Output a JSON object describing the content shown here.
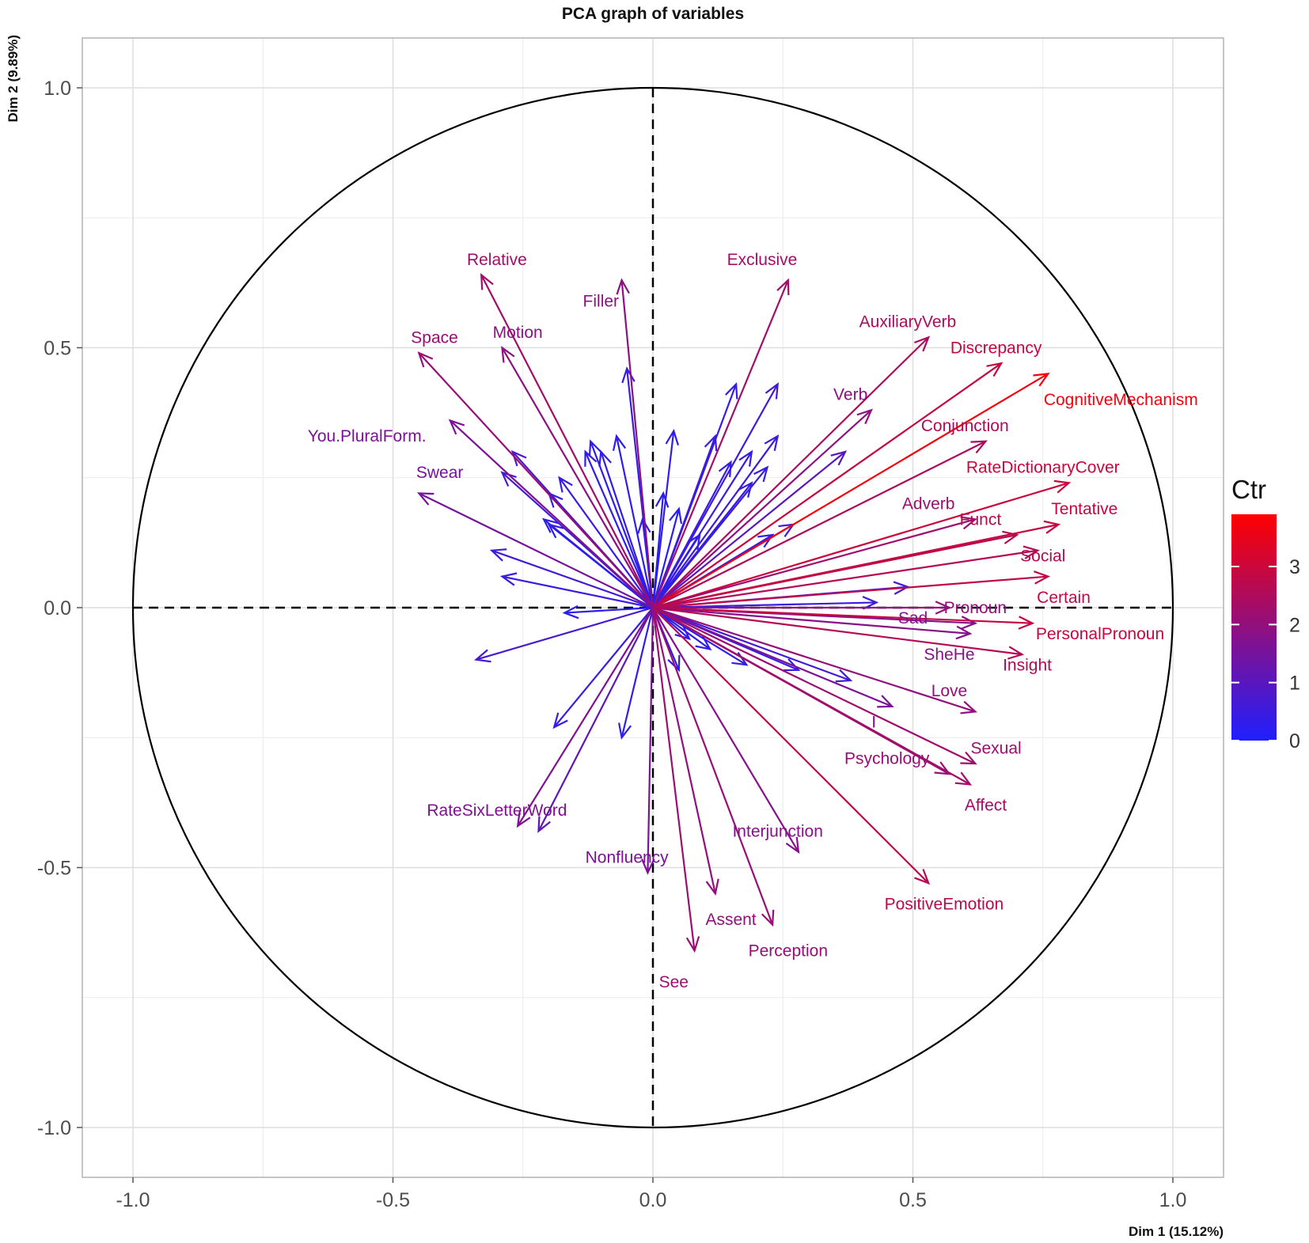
{
  "chart_data": {
    "type": "scatter",
    "subtype": "pca-correlation-circle",
    "title": "PCA graph of variables",
    "xlabel": "Dim 1 (15.12%)",
    "ylabel": "Dim 2 (9.89%)",
    "xlim": [
      -1.1,
      1.1
    ],
    "ylim": [
      -1.1,
      1.1
    ],
    "x_ticks": [
      -1.0,
      -0.5,
      0.0,
      0.5,
      1.0
    ],
    "y_ticks": [
      -1.0,
      -0.5,
      0.0,
      0.5,
      1.0
    ],
    "x_tick_labels": [
      "-1.0",
      "-0.5",
      "0.0",
      "0.5",
      "1.0"
    ],
    "y_tick_labels": [
      "-1.0",
      "-0.5",
      "0.0",
      "0.5",
      "1.0"
    ],
    "grid": true,
    "legend": {
      "title": "Ctr",
      "position": "right",
      "ticks": [
        0,
        1,
        2,
        3
      ],
      "tick_labels": [
        "0",
        "1",
        "2",
        "3"
      ],
      "min": 0,
      "max": 3.9,
      "colors": [
        "#1f1fff",
        "#ff0000"
      ]
    },
    "labeled_variables": [
      {
        "name": "Relative",
        "x": -0.33,
        "y": 0.64,
        "ctr": 2.3,
        "lx": -0.3,
        "ly": 0.67
      },
      {
        "name": "Filler",
        "x": -0.06,
        "y": 0.63,
        "ctr": 1.9,
        "lx": -0.1,
        "ly": 0.59
      },
      {
        "name": "Exclusive",
        "x": 0.26,
        "y": 0.63,
        "ctr": 2.3,
        "lx": 0.21,
        "ly": 0.67
      },
      {
        "name": "AuxiliaryVerb",
        "x": 0.53,
        "y": 0.52,
        "ctr": 2.5,
        "lx": 0.49,
        "ly": 0.55
      },
      {
        "name": "Discrepancy",
        "x": 0.67,
        "y": 0.47,
        "ctr": 2.9,
        "lx": 0.66,
        "ly": 0.5
      },
      {
        "name": "Motion",
        "x": -0.29,
        "y": 0.5,
        "ctr": 1.9,
        "lx": -0.26,
        "ly": 0.53
      },
      {
        "name": "Space",
        "x": -0.45,
        "y": 0.49,
        "ctr": 2.1,
        "lx": -0.42,
        "ly": 0.52
      },
      {
        "name": "CognitiveMechanism",
        "x": 0.76,
        "y": 0.45,
        "ctr": 3.7,
        "lx": 0.9,
        "ly": 0.4
      },
      {
        "name": "Verb",
        "x": 0.42,
        "y": 0.38,
        "ctr": 1.9,
        "lx": 0.38,
        "ly": 0.41
      },
      {
        "name": "You.PluralForm.",
        "x": -0.39,
        "y": 0.36,
        "ctr": 1.6,
        "lx": -0.55,
        "ly": 0.33
      },
      {
        "name": "Conjunction",
        "x": 0.64,
        "y": 0.32,
        "ctr": 2.5,
        "lx": 0.6,
        "ly": 0.35
      },
      {
        "name": "Swear",
        "x": -0.45,
        "y": 0.22,
        "ctr": 1.5,
        "lx": -0.41,
        "ly": 0.26
      },
      {
        "name": "RateDictionaryCover",
        "x": 0.8,
        "y": 0.24,
        "ctr": 3.0,
        "lx": 0.75,
        "ly": 0.27
      },
      {
        "name": "Adverb",
        "x": 0.62,
        "y": 0.17,
        "ctr": 2.2,
        "lx": 0.53,
        "ly": 0.2
      },
      {
        "name": "Funct",
        "x": 0.7,
        "y": 0.14,
        "ctr": 2.7,
        "lx": 0.63,
        "ly": 0.17
      },
      {
        "name": "Tentative",
        "x": 0.78,
        "y": 0.16,
        "ctr": 2.9,
        "lx": 0.83,
        "ly": 0.19
      },
      {
        "name": "Social",
        "x": 0.74,
        "y": 0.11,
        "ctr": 2.6,
        "lx": 0.75,
        "ly": 0.1
      },
      {
        "name": "Certain",
        "x": 0.76,
        "y": 0.06,
        "ctr": 2.8,
        "lx": 0.79,
        "ly": 0.02
      },
      {
        "name": "Pronoun",
        "x": 0.57,
        "y": 0.0,
        "ctr": 2.0,
        "lx": 0.62,
        "ly": 0.0
      },
      {
        "name": "Sad",
        "x": 0.62,
        "y": -0.03,
        "ctr": 1.8,
        "lx": 0.5,
        "ly": -0.02
      },
      {
        "name": "PersonalPronoun",
        "x": 0.73,
        "y": -0.03,
        "ctr": 2.9,
        "lx": 0.86,
        "ly": -0.05
      },
      {
        "name": "SheHe",
        "x": 0.61,
        "y": -0.05,
        "ctr": 1.8,
        "lx": 0.57,
        "ly": -0.09
      },
      {
        "name": "Insight",
        "x": 0.71,
        "y": -0.09,
        "ctr": 2.6,
        "lx": 0.72,
        "ly": -0.11
      },
      {
        "name": "Love",
        "x": 0.62,
        "y": -0.2,
        "ctr": 2.0,
        "lx": 0.57,
        "ly": -0.16
      },
      {
        "name": "I",
        "x": 0.46,
        "y": -0.19,
        "ctr": 1.6,
        "lx": 0.425,
        "ly": -0.22
      },
      {
        "name": "Sexual",
        "x": 0.62,
        "y": -0.3,
        "ctr": 2.2,
        "lx": 0.66,
        "ly": -0.27
      },
      {
        "name": "Psychology",
        "x": 0.57,
        "y": -0.32,
        "ctr": 2.1,
        "lx": 0.45,
        "ly": -0.29
      },
      {
        "name": "Affect",
        "x": 0.61,
        "y": -0.34,
        "ctr": 2.3,
        "lx": 0.64,
        "ly": -0.38
      },
      {
        "name": "RateSixLetterWord",
        "x": -0.26,
        "y": -0.42,
        "ctr": 1.7,
        "lx": -0.3,
        "ly": -0.39
      },
      {
        "name": "Interjunction",
        "x": 0.28,
        "y": -0.47,
        "ctr": 1.8,
        "lx": 0.24,
        "ly": -0.43
      },
      {
        "name": "Nonfluency",
        "x": -0.01,
        "y": -0.51,
        "ctr": 1.6,
        "lx": -0.05,
        "ly": -0.48
      },
      {
        "name": "PositiveEmotion",
        "x": 0.53,
        "y": -0.53,
        "ctr": 2.7,
        "lx": 0.56,
        "ly": -0.57
      },
      {
        "name": "Assent",
        "x": 0.12,
        "y": -0.55,
        "ctr": 2.0,
        "lx": 0.15,
        "ly": -0.6
      },
      {
        "name": "Perception",
        "x": 0.23,
        "y": -0.61,
        "ctr": 2.1,
        "lx": 0.26,
        "ly": -0.66
      },
      {
        "name": "See",
        "x": 0.08,
        "y": -0.66,
        "ctr": 2.2,
        "lx": 0.04,
        "ly": -0.72
      }
    ],
    "unlabeled_variables": [
      {
        "x": -0.05,
        "y": 0.46,
        "ctr": 0.4
      },
      {
        "x": 0.16,
        "y": 0.43,
        "ctr": 0.4
      },
      {
        "x": 0.24,
        "y": 0.43,
        "ctr": 0.6
      },
      {
        "x": -0.12,
        "y": 0.32,
        "ctr": 0.3
      },
      {
        "x": -0.07,
        "y": 0.33,
        "ctr": 0.3
      },
      {
        "x": 0.04,
        "y": 0.34,
        "ctr": 0.3
      },
      {
        "x": 0.12,
        "y": 0.33,
        "ctr": 0.5
      },
      {
        "x": 0.24,
        "y": 0.33,
        "ctr": 0.5
      },
      {
        "x": -0.13,
        "y": 0.3,
        "ctr": 0.3
      },
      {
        "x": -0.1,
        "y": 0.3,
        "ctr": 0.3
      },
      {
        "x": 0.19,
        "y": 0.3,
        "ctr": 0.4
      },
      {
        "x": -0.27,
        "y": 0.3,
        "ctr": 0.8
      },
      {
        "x": -0.18,
        "y": 0.25,
        "ctr": 0.4
      },
      {
        "x": -0.29,
        "y": 0.26,
        "ctr": 0.7
      },
      {
        "x": 0.15,
        "y": 0.28,
        "ctr": 0.4
      },
      {
        "x": 0.22,
        "y": 0.27,
        "ctr": 0.4
      },
      {
        "x": 0.37,
        "y": 0.3,
        "ctr": 1.0
      },
      {
        "x": -0.2,
        "y": 0.22,
        "ctr": 0.4
      },
      {
        "x": 0.02,
        "y": 0.22,
        "ctr": 0.2
      },
      {
        "x": 0.19,
        "y": 0.24,
        "ctr": 0.4
      },
      {
        "x": -0.21,
        "y": 0.17,
        "ctr": 0.3
      },
      {
        "x": 0.05,
        "y": 0.19,
        "ctr": 0.2
      },
      {
        "x": -0.02,
        "y": 0.17,
        "ctr": 0.2
      },
      {
        "x": -0.2,
        "y": 0.16,
        "ctr": 0.3
      },
      {
        "x": 0.09,
        "y": 0.14,
        "ctr": 0.3
      },
      {
        "x": 0.23,
        "y": 0.14,
        "ctr": 0.3
      },
      {
        "x": 0.27,
        "y": 0.16,
        "ctr": 0.5
      },
      {
        "x": -0.31,
        "y": 0.11,
        "ctr": 0.6
      },
      {
        "x": -0.29,
        "y": 0.06,
        "ctr": 0.5
      },
      {
        "x": 0.49,
        "y": 0.04,
        "ctr": 0.6
      },
      {
        "x": 0.43,
        "y": 0.01,
        "ctr": 0.5
      },
      {
        "x": -0.17,
        "y": -0.01,
        "ctr": 0.2
      },
      {
        "x": -0.34,
        "y": -0.1,
        "ctr": 0.7
      },
      {
        "x": 0.07,
        "y": -0.06,
        "ctr": 0.2
      },
      {
        "x": 0.11,
        "y": -0.08,
        "ctr": 0.3
      },
      {
        "x": 0.05,
        "y": -0.12,
        "ctr": 0.2
      },
      {
        "x": 0.18,
        "y": -0.11,
        "ctr": 0.3
      },
      {
        "x": 0.28,
        "y": -0.12,
        "ctr": 0.4
      },
      {
        "x": 0.38,
        "y": -0.14,
        "ctr": 0.6
      },
      {
        "x": -0.06,
        "y": -0.25,
        "ctr": 0.3
      },
      {
        "x": -0.19,
        "y": -0.23,
        "ctr": 0.4
      },
      {
        "x": -0.22,
        "y": -0.43,
        "ctr": 1.1
      }
    ]
  }
}
